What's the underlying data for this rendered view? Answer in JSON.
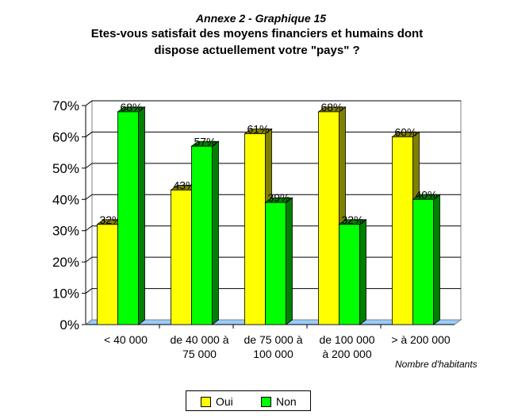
{
  "title": {
    "line1": "Annexe 2 - Graphique 15",
    "line2": "Etes-vous satisfait des moyens financiers et humains dont",
    "line3": "dispose actuellement votre \"pays\" ?"
  },
  "colors": {
    "oui": "#ffff00",
    "oui_side": "#808000",
    "non": "#00ff00",
    "non_side": "#008000",
    "floor": "#99ccff",
    "grid": "#000000"
  },
  "chart_data": {
    "type": "bar",
    "title": "Etes-vous satisfait des moyens financiers et humains dont dispose actuellement votre \"pays\" ?",
    "xlabel": "Nombre d'habitants",
    "ylabel": "",
    "ylim": [
      0,
      70
    ],
    "yticks": [
      "0%",
      "10%",
      "20%",
      "30%",
      "40%",
      "50%",
      "60%",
      "70%"
    ],
    "categories": [
      [
        "< 40 000"
      ],
      [
        "de 40 000 à",
        "75 000"
      ],
      [
        "de 75 000 à",
        "100 000"
      ],
      [
        "de 100 000",
        "à 200 000"
      ],
      [
        "> à 200 000"
      ]
    ],
    "series": [
      {
        "name": "Oui",
        "values": [
          32,
          43,
          61,
          68,
          60
        ],
        "labels": [
          "32%",
          "43%",
          "61%",
          "68%",
          "60%"
        ]
      },
      {
        "name": "Non",
        "values": [
          68,
          57,
          39,
          32,
          40
        ],
        "labels": [
          "68%",
          "57%",
          "39%",
          "32%",
          "40%"
        ]
      }
    ],
    "grid": true,
    "legend": "bottom"
  }
}
